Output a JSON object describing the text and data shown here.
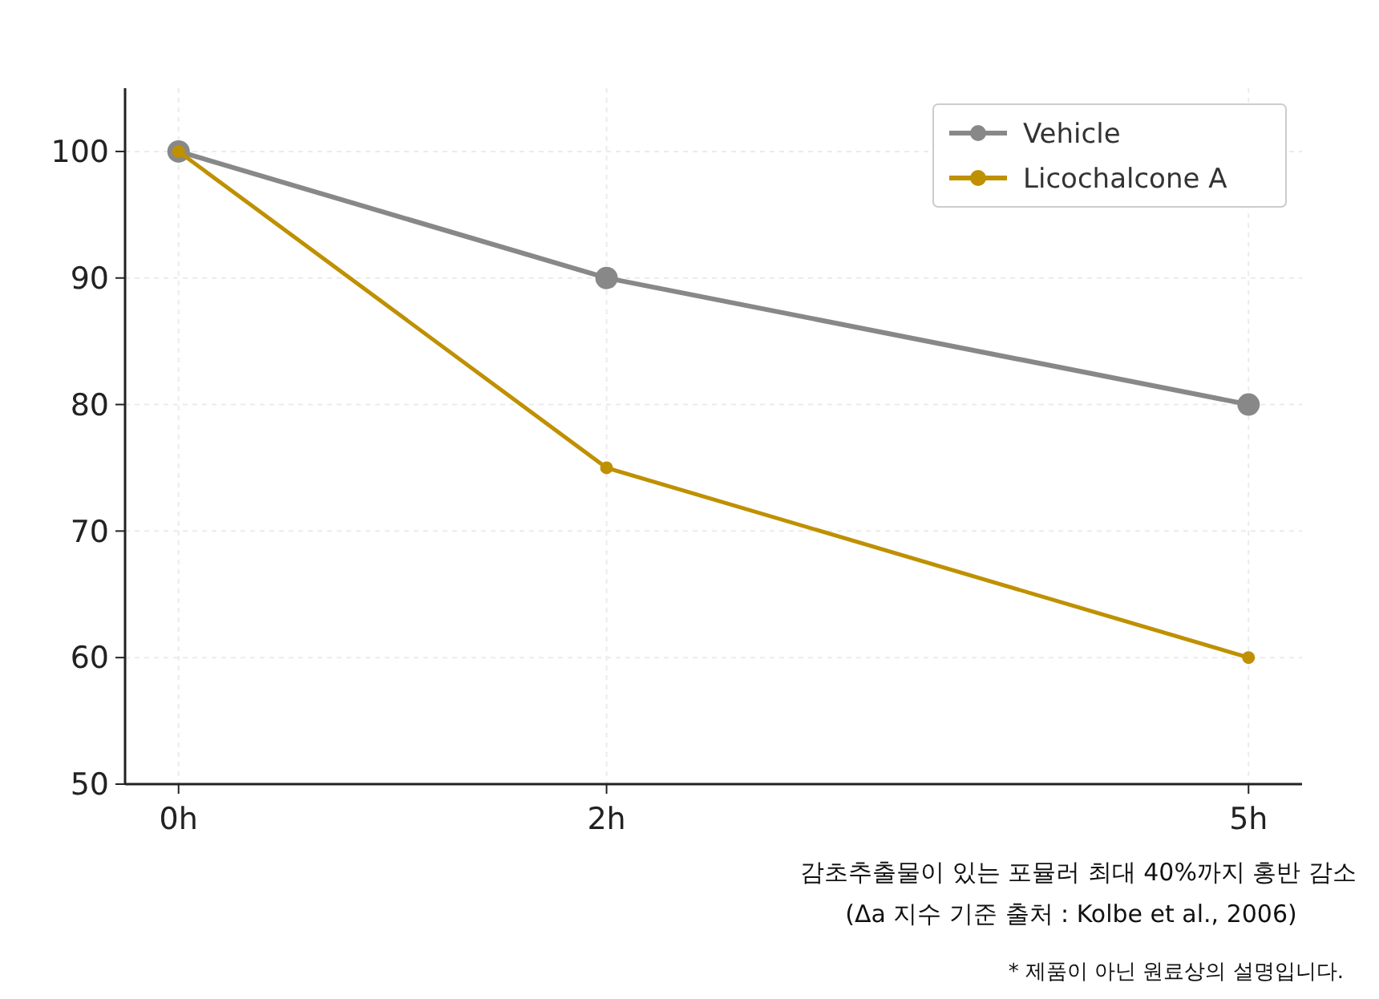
{
  "chart_data": {
    "type": "line",
    "x": [
      0,
      2,
      5
    ],
    "xlim": [
      -0.25,
      5.25
    ],
    "xticks": [
      {
        "value": 0,
        "label": "0h"
      },
      {
        "value": 2,
        "label": "2h"
      },
      {
        "value": 5,
        "label": "5h"
      }
    ],
    "ylim": [
      50,
      105
    ],
    "yticks": [
      50,
      60,
      70,
      80,
      90,
      100
    ],
    "grid": true,
    "legend": "top right",
    "marker": "circle",
    "line_style": "solid",
    "series": [
      {
        "name": "Vehicle",
        "color": "#888888",
        "values": [
          100,
          90,
          80
        ]
      },
      {
        "name": "Licochalcone A",
        "color": "#bf9000",
        "values": [
          100,
          75,
          60
        ]
      }
    ],
    "annotations": [
      "감초추출물이 있는 포뮬러 최대 40%까지 홍반 감소",
      "(Δa 지수 기준 출처 : Kolbe et al., 2006)",
      "* 제품이 아닌 원료상의 설명입니다."
    ]
  }
}
